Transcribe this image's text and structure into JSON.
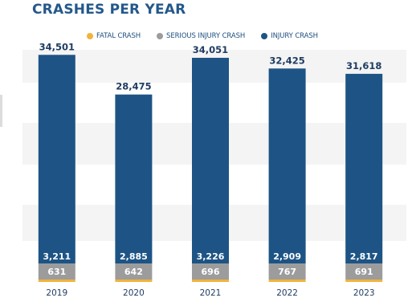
{
  "chart_data": {
    "type": "bar",
    "stacked": true,
    "title": "CRASHES PER YEAR",
    "categories": [
      "2019",
      "2020",
      "2021",
      "2022",
      "2023"
    ],
    "series": [
      {
        "name": "FATAL CRASH",
        "color": "#f0b33c",
        "values": [
          null,
          null,
          null,
          null,
          null
        ]
      },
      {
        "name": "SERIOUS INJURY CRASH",
        "color": "#9c9c9c",
        "values": [
          631,
          642,
          696,
          767,
          691
        ]
      },
      {
        "name": "INJURY CRASH",
        "color": "#1d5485",
        "values": [
          3211,
          2885,
          3226,
          2909,
          2817
        ]
      }
    ],
    "totals": [
      34501,
      28475,
      34051,
      32425,
      31618
    ],
    "total_labels": [
      "34,501",
      "28,475",
      "34,051",
      "32,425",
      "31,618"
    ],
    "injury_labels": [
      "3,211",
      "2,885",
      "3,226",
      "2,909",
      "2,817"
    ],
    "serious_labels": [
      "631",
      "642",
      "696",
      "767",
      "691"
    ],
    "ylim": [
      0,
      36000
    ],
    "grid": "horizontal bands",
    "legend_position": "top"
  }
}
